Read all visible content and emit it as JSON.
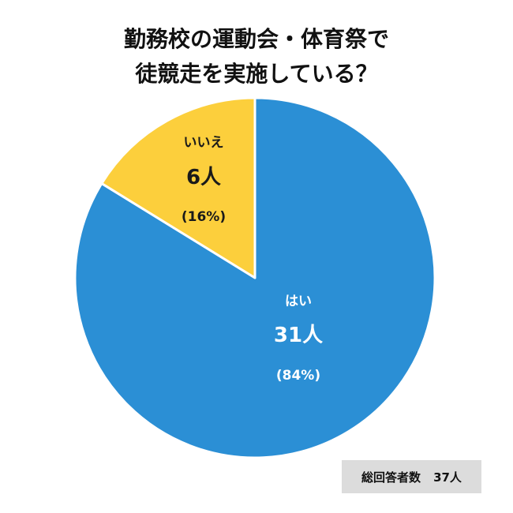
{
  "title": {
    "line1": "勤務校の運動会・体育祭で",
    "line2": "徒競走を実施している？"
  },
  "footer": {
    "total_label": "総回答者数",
    "total_value": "37人"
  },
  "colors": {
    "yes": "#2b8fd5",
    "no": "#fccf3c",
    "yes_text": "#ffffff",
    "no_text": "#1a1a1a"
  },
  "chart_data": {
    "type": "pie",
    "total": 37,
    "slices": [
      {
        "name": "はい",
        "count": 31,
        "count_label": "31人",
        "percent": 84,
        "percent_label": "(84%)",
        "color": "#2b8fd5"
      },
      {
        "name": "いいえ",
        "count": 6,
        "count_label": "6人",
        "percent": 16,
        "percent_label": "(16%)",
        "color": "#fccf3c"
      }
    ]
  }
}
